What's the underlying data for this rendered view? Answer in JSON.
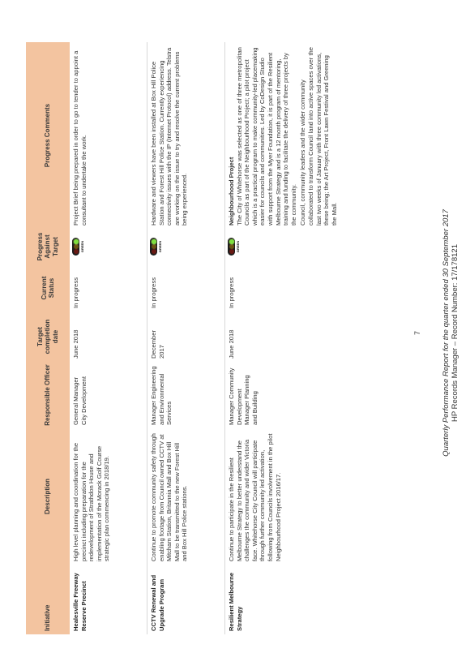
{
  "table": {
    "headers": {
      "initiative": "Initiative",
      "description": "Description",
      "officer": "Responsible Officer",
      "completion": "Target completion date",
      "status": "Current Status",
      "progress": "Progress Against Target",
      "comments": "Progress Comments"
    },
    "rows": [
      {
        "initiative": "Healesville Freeway Reserve Precinct",
        "description": "High level planning and coordination for the precinct including preparation for the redevelopment of Strathdon House and implementation of the Morack Golf Course strategic plan commencing in 2018/19.",
        "officer": "General Manager City Development",
        "completion": "June 2018",
        "status": "In progress",
        "progress": "GREEN",
        "comment_title": "",
        "comments": [
          "Project Brief being prepared in order to go to tender to appoint a consultant to undertake the work."
        ]
      },
      {
        "initiative": "CCTV Renewal and Upgrade Program",
        "description": "Continue to promote community safety through enabling footage from Council owned CCTV at Mitcham Station, Britannia Mall and Box Hill Mall to be transmitted to the new Forest Hill and Box Hill Police stations.",
        "officer": "Manager Engineering and Environmental Services",
        "completion": "December 2017",
        "status": "In progress",
        "progress": "GREEN",
        "comment_title": "",
        "comments": [
          "Hardware and viewers have been installed at Box Hill Police Station and Forest Hill Police Station. Currently experiencing connectivity issues with the IP (Internet Protocol) address. Telstra are working on the issue to try and resolve the current problems being experienced."
        ]
      },
      {
        "initiative": "Resilient Melbourne Strategy",
        "description": "Continue to participate in the Resilient Melbourne Strategy to better understand the challenges the community and wider Victoria face. Whitehorse City Council will participate through further community led activation, following from Councils involvement in the pilot Neighbourhood Project 2016/17.",
        "officer": "Manager Community Development Manager Planning and Building",
        "completion": "June 2018",
        "status": "In progress",
        "progress": "GREEN",
        "comment_title": "Neighbourhood Project",
        "comments": [
          "The City of Whitehorse was selected as one of three metropolitan Councils as part of the Neighbourhood Project; a pilot project which is a practical program to make community-led placemaking easier for councils and communities. Led by CoDesign Studio with support from the Myer Foundation, it is part of the Resilient Melbourne Strategy and is a 12 month program of mentoring, training and funding to facilitate the delivery of three projects by the community.",
          "Council, community leaders and the wider community collaborated to transform Council land into active spaces over the last two weeks of January with three community led activations, these being; the Art Project, Front Lawn Festival and Greening the Mall."
        ]
      }
    ]
  },
  "page_number": "7",
  "footer": {
    "report_title": "Quarterly Performance Report for the quarter ended 30 September 2017",
    "record_line": "HP Records Manager – Record Number: 17/178121"
  },
  "colors": {
    "header_bg": "#f3c4a0",
    "status_green": "#7ee03e"
  }
}
